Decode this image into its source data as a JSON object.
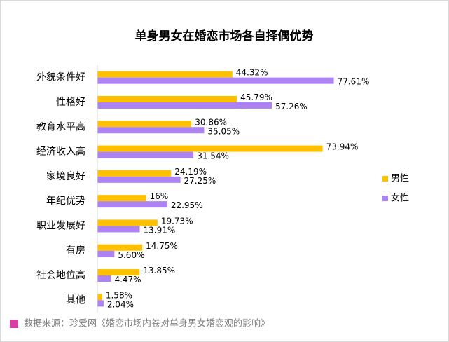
{
  "chart_data": {
    "type": "hbar",
    "title": "单身男女在婚恋市场各自择偶优势",
    "categories": [
      "外貌条件好",
      "性格好",
      "教育水平高",
      "经济收入高",
      "家境良好",
      "年纪优势",
      "职业发展好",
      "有房",
      "社会地位高",
      "其他"
    ],
    "series": [
      {
        "name": "男性",
        "color": "#ffc000",
        "values": [
          44.32,
          45.79,
          30.86,
          73.94,
          24.19,
          16,
          19.73,
          14.75,
          13.85,
          1.58
        ],
        "value_labels": [
          "44.32%",
          "45.79%",
          "30.86%",
          "73.94%",
          "24.19%",
          "16%",
          "19.73%",
          "14.75%",
          "13.85%",
          "1.58%"
        ]
      },
      {
        "name": "女性",
        "color": "#ad82f2",
        "values": [
          77.61,
          57.26,
          35.05,
          31.54,
          27.25,
          22.95,
          13.91,
          5.6,
          4.47,
          2.04
        ],
        "value_labels": [
          "77.61%",
          "57.26%",
          "35.05%",
          "31.54%",
          "27.25%",
          "22.95%",
          "13.91%",
          "5.60%",
          "4.47%",
          "2.04%"
        ]
      }
    ],
    "xlim": [
      0,
      100
    ],
    "legend": "right",
    "source": "数据来源：珍爱网《婚恋市场内卷对单身男女婚恋观的影响》"
  }
}
